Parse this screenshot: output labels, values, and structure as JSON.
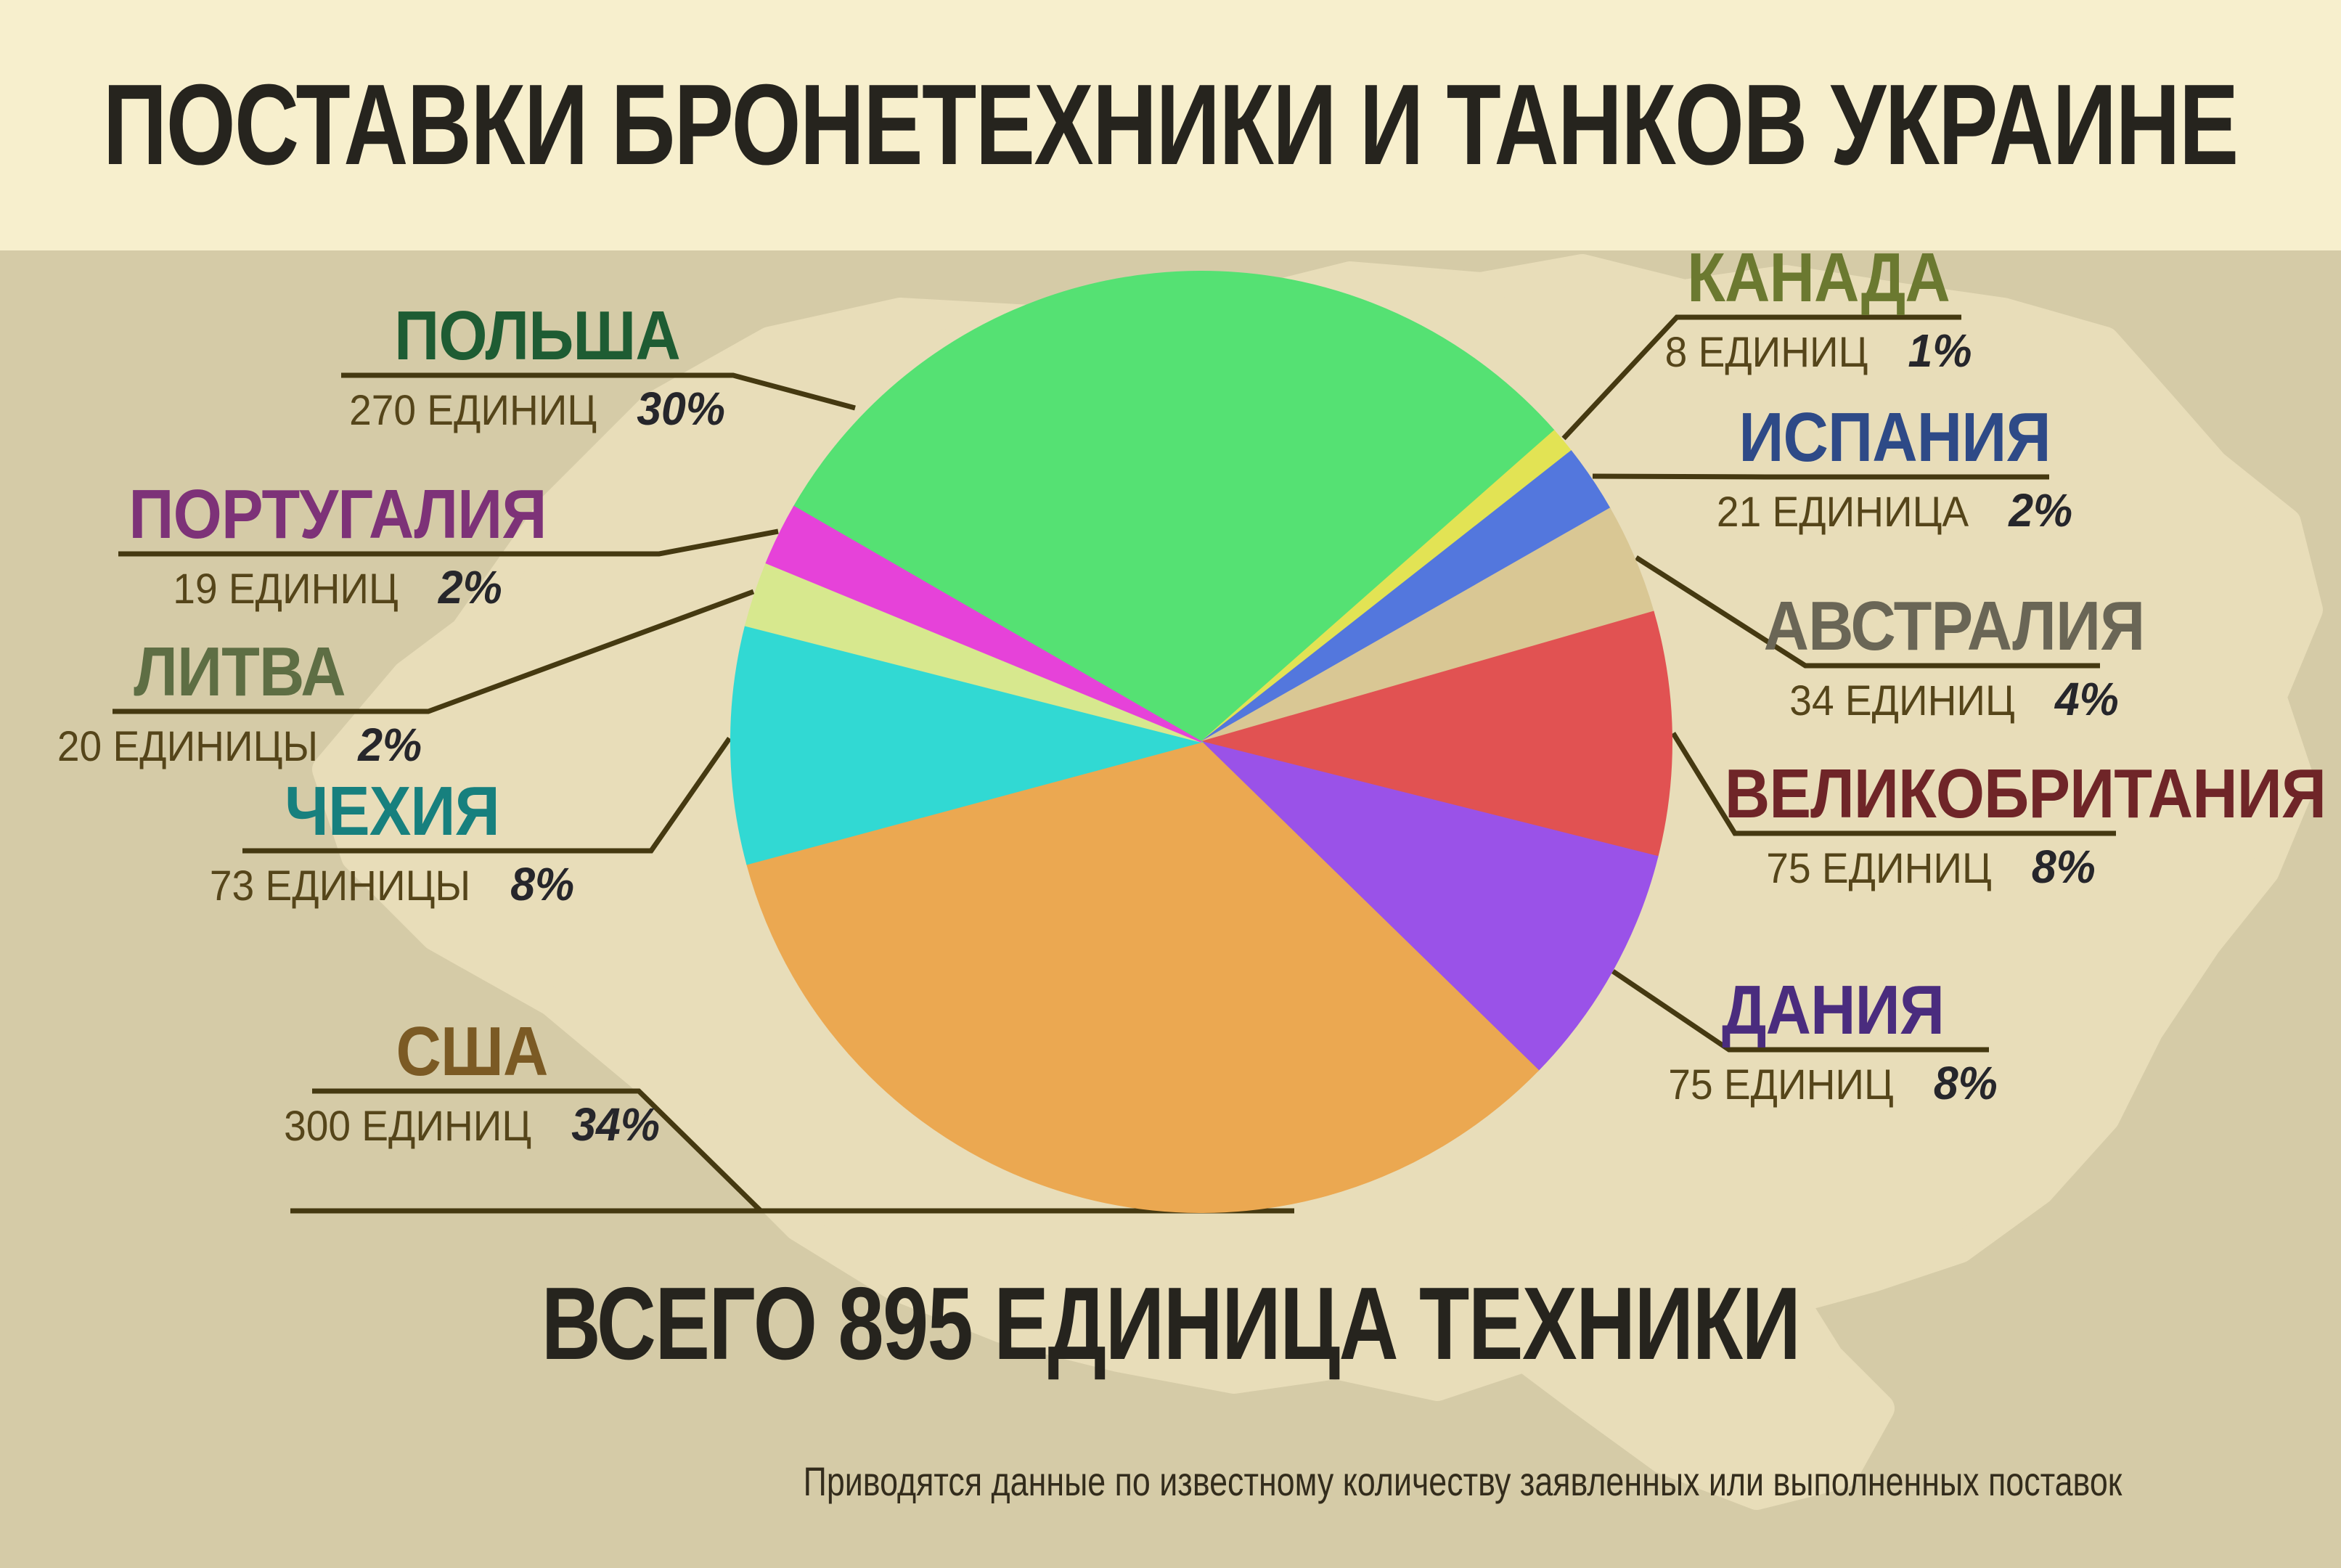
{
  "header": {
    "title": "ПОСТАВКИ БРОНЕТЕХНИКИ И ТАНКОВ УКРАИНЕ"
  },
  "summary": {
    "total_label": "ВСЕГО 895 ЕДИНИЦА ТЕХНИКИ"
  },
  "footnote": "Приводятся данные по известному количеству заявленных или выполненных поставок",
  "chart_data": {
    "type": "pie",
    "title": "ПОСТАВКИ БРОНЕТЕХНИКИ И ТАНКОВ УКРАИНЕ",
    "total_units": 895,
    "total_label": "ВСЕГО 895 ЕДИНИЦА ТЕХНИКИ",
    "legend_position": "callouts",
    "start_angle_deg": -60,
    "slices": [
      {
        "country": "ПОЛЬША",
        "units": 270,
        "units_label": "270 ЕДИНИЦ",
        "percent": "30%",
        "color": "#55e173",
        "name_color": "#1e5c33"
      },
      {
        "country": "КАНАДА",
        "units": 8,
        "units_label": "8 ЕДИНИЦ",
        "percent": "1%",
        "color": "#e2e354",
        "name_color": "#6b7930"
      },
      {
        "country": "ИСПАНИЯ",
        "units": 21,
        "units_label": "21 ЕДИНИЦА",
        "percent": "2%",
        "color": "#5377dd",
        "name_color": "#2e4a87"
      },
      {
        "country": "АВСТРАЛИЯ",
        "units": 34,
        "units_label": "34 ЕДИНИЦ",
        "percent": "4%",
        "color": "#d9c794",
        "name_color": "#6a6656"
      },
      {
        "country": "ВЕЛИКОБРИТАНИЯ",
        "units": 75,
        "units_label": "75 ЕДИНИЦ",
        "percent": "8%",
        "color": "#e15252",
        "name_color": "#6f2528"
      },
      {
        "country": "ДАНИЯ",
        "units": 75,
        "units_label": "75 ЕДИНИЦ",
        "percent": "8%",
        "color": "#9a52e8",
        "name_color": "#4a2c7e"
      },
      {
        "country": "США",
        "units": 300,
        "units_label": "300 ЕДИНИЦ",
        "percent": "34%",
        "color": "#eba851",
        "name_color": "#7b5a24"
      },
      {
        "country": "ЧЕХИЯ",
        "units": 73,
        "units_label": "73 ЕДИНИЦЫ",
        "percent": "8%",
        "color": "#31d9d3",
        "name_color": "#17807e"
      },
      {
        "country": "ЛИТВА",
        "units": 20,
        "units_label": "20 ЕДИНИЦЫ",
        "percent": "2%",
        "color": "#d7e88e",
        "name_color": "#5e6e44"
      },
      {
        "country": "ПОРТУГАЛИЯ",
        "units": 19,
        "units_label": "19 ЕДИНИЦ",
        "percent": "2%",
        "color": "#e642d9",
        "name_color": "#7d3278"
      }
    ]
  },
  "colors": {
    "background": "#d5cba7",
    "title_band": "#f7efcd",
    "map_silhouette": "#e8ddb9",
    "callout_line": "#453911",
    "units_text": "#55451a",
    "percent_text": "#26262b",
    "title_text": "#26241e"
  }
}
